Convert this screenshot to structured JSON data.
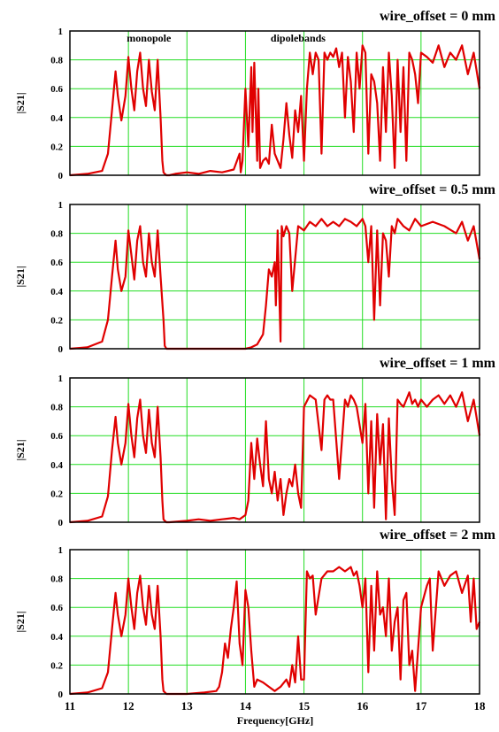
{
  "figure": {
    "xlabel": "Frequency[GHz]",
    "x_ticks": [
      "11",
      "12",
      "13",
      "14",
      "15",
      "16",
      "17",
      "18"
    ]
  },
  "chart_data": [
    {
      "type": "line",
      "title": "wire_offset = 0 mm",
      "ylabel": "|S21|",
      "xlabel": "",
      "xlim": [
        11,
        18
      ],
      "ylim": [
        0,
        1
      ],
      "x_ticks": [
        11,
        12,
        13,
        14,
        15,
        16,
        17,
        18
      ],
      "y_ticks": [
        "0",
        "0.2",
        "0.4",
        "0.6",
        "0.8",
        "1"
      ],
      "grid": true,
      "line_color": "#e00000",
      "annotations": [
        {
          "text": "monopole",
          "x": 12.35,
          "y": 0.95
        },
        {
          "text": "dipolebands",
          "x": 14.9,
          "y": 0.95
        }
      ],
      "series": [
        {
          "x": [
            11.0,
            11.3,
            11.55,
            11.65,
            11.72,
            11.78,
            11.82,
            11.88,
            11.95,
            12.0,
            12.05,
            12.1,
            12.15,
            12.2,
            12.25,
            12.3,
            12.35,
            12.4,
            12.45,
            12.5,
            12.55,
            12.58,
            12.6,
            12.62,
            12.65,
            12.7,
            12.8,
            13.0,
            13.2,
            13.4,
            13.6,
            13.8,
            13.9,
            13.92,
            13.95,
            14.0,
            14.05,
            14.1,
            14.12,
            14.15,
            14.2,
            14.22,
            14.25,
            14.3,
            14.35,
            14.4,
            14.45,
            14.5,
            14.55,
            14.6,
            14.65,
            14.7,
            14.75,
            14.8,
            14.85,
            14.9,
            14.95,
            15.0,
            15.05,
            15.1,
            15.15,
            15.2,
            15.25,
            15.3,
            15.35,
            15.4,
            15.45,
            15.5,
            15.55,
            15.6,
            15.65,
            15.7,
            15.75,
            15.8,
            15.85,
            15.9,
            15.95,
            16.0,
            16.05,
            16.1,
            16.15,
            16.2,
            16.25,
            16.3,
            16.35,
            16.4,
            16.45,
            16.5,
            16.55,
            16.6,
            16.65,
            16.7,
            16.75,
            16.8,
            16.85,
            16.9,
            16.95,
            17.0,
            17.1,
            17.2,
            17.3,
            17.4,
            17.5,
            17.6,
            17.7,
            17.8,
            17.9,
            18.0
          ],
          "y": [
            0.0,
            0.01,
            0.03,
            0.15,
            0.45,
            0.72,
            0.55,
            0.38,
            0.55,
            0.82,
            0.6,
            0.45,
            0.72,
            0.85,
            0.6,
            0.48,
            0.8,
            0.58,
            0.45,
            0.8,
            0.4,
            0.1,
            0.02,
            0.01,
            0.0,
            0.0,
            0.01,
            0.02,
            0.01,
            0.03,
            0.02,
            0.04,
            0.15,
            0.02,
            0.1,
            0.6,
            0.2,
            0.75,
            0.3,
            0.78,
            0.1,
            0.6,
            0.05,
            0.1,
            0.12,
            0.08,
            0.35,
            0.15,
            0.1,
            0.05,
            0.25,
            0.5,
            0.28,
            0.12,
            0.45,
            0.3,
            0.55,
            0.1,
            0.6,
            0.85,
            0.7,
            0.85,
            0.8,
            0.15,
            0.85,
            0.8,
            0.85,
            0.82,
            0.88,
            0.75,
            0.85,
            0.4,
            0.82,
            0.65,
            0.3,
            0.85,
            0.6,
            0.9,
            0.85,
            0.15,
            0.7,
            0.65,
            0.5,
            0.1,
            0.75,
            0.3,
            0.85,
            0.55,
            0.05,
            0.8,
            0.3,
            0.75,
            0.1,
            0.85,
            0.8,
            0.7,
            0.5,
            0.85,
            0.82,
            0.78,
            0.9,
            0.75,
            0.85,
            0.8,
            0.9,
            0.7,
            0.85,
            0.6
          ]
        }
      ]
    },
    {
      "type": "line",
      "title": "wire_offset = 0.5 mm",
      "ylabel": "|S21|",
      "xlabel": "",
      "xlim": [
        11,
        18
      ],
      "ylim": [
        0,
        1
      ],
      "x_ticks": [
        11,
        12,
        13,
        14,
        15,
        16,
        17,
        18
      ],
      "y_ticks": [
        "0",
        "0.2",
        "0.4",
        "0.6",
        "0.8",
        "1"
      ],
      "grid": true,
      "line_color": "#e00000",
      "series": [
        {
          "x": [
            11.0,
            11.3,
            11.55,
            11.65,
            11.72,
            11.78,
            11.82,
            11.88,
            11.95,
            12.0,
            12.05,
            12.1,
            12.15,
            12.2,
            12.25,
            12.3,
            12.35,
            12.4,
            12.45,
            12.5,
            12.55,
            12.6,
            12.62,
            12.65,
            12.7,
            13.0,
            13.5,
            14.0,
            14.1,
            14.2,
            14.3,
            14.35,
            14.4,
            14.45,
            14.5,
            14.52,
            14.55,
            14.6,
            14.62,
            14.65,
            14.7,
            14.75,
            14.8,
            14.9,
            15.0,
            15.1,
            15.2,
            15.3,
            15.4,
            15.5,
            15.6,
            15.7,
            15.8,
            15.9,
            16.0,
            16.05,
            16.1,
            16.15,
            16.2,
            16.25,
            16.3,
            16.35,
            16.4,
            16.45,
            16.5,
            16.55,
            16.6,
            16.7,
            16.8,
            16.9,
            17.0,
            17.2,
            17.4,
            17.6,
            17.7,
            17.8,
            17.9,
            18.0
          ],
          "y": [
            0.0,
            0.01,
            0.05,
            0.2,
            0.5,
            0.75,
            0.55,
            0.4,
            0.5,
            0.82,
            0.65,
            0.48,
            0.75,
            0.85,
            0.6,
            0.5,
            0.8,
            0.6,
            0.5,
            0.82,
            0.5,
            0.2,
            0.02,
            0.0,
            0.0,
            0.0,
            0.0,
            0.0,
            0.01,
            0.03,
            0.1,
            0.3,
            0.55,
            0.5,
            0.6,
            0.3,
            0.82,
            0.05,
            0.85,
            0.78,
            0.85,
            0.8,
            0.4,
            0.85,
            0.82,
            0.88,
            0.85,
            0.9,
            0.85,
            0.88,
            0.85,
            0.9,
            0.88,
            0.85,
            0.9,
            0.85,
            0.6,
            0.85,
            0.2,
            0.82,
            0.3,
            0.8,
            0.75,
            0.5,
            0.85,
            0.8,
            0.9,
            0.85,
            0.82,
            0.9,
            0.85,
            0.88,
            0.85,
            0.8,
            0.88,
            0.75,
            0.85,
            0.62
          ]
        }
      ]
    },
    {
      "type": "line",
      "title": "wire_offset = 1 mm",
      "ylabel": "|S21|",
      "xlabel": "",
      "xlim": [
        11,
        18
      ],
      "ylim": [
        0,
        1
      ],
      "x_ticks": [
        11,
        12,
        13,
        14,
        15,
        16,
        17,
        18
      ],
      "y_ticks": [
        "0",
        "0.2",
        "0.4",
        "0.6",
        "0.8",
        "1"
      ],
      "grid": true,
      "line_color": "#e00000",
      "series": [
        {
          "x": [
            11.0,
            11.3,
            11.55,
            11.65,
            11.72,
            11.78,
            11.82,
            11.88,
            11.95,
            12.0,
            12.05,
            12.1,
            12.15,
            12.2,
            12.25,
            12.3,
            12.35,
            12.4,
            12.45,
            12.5,
            12.55,
            12.58,
            12.6,
            12.62,
            12.65,
            12.7,
            13.0,
            13.2,
            13.4,
            13.6,
            13.8,
            13.9,
            14.0,
            14.05,
            14.1,
            14.15,
            14.2,
            14.25,
            14.3,
            14.35,
            14.4,
            14.45,
            14.5,
            14.55,
            14.6,
            14.65,
            14.7,
            14.75,
            14.8,
            14.85,
            14.9,
            14.95,
            15.0,
            15.1,
            15.2,
            15.3,
            15.35,
            15.4,
            15.45,
            15.5,
            15.6,
            15.7,
            15.75,
            15.8,
            15.85,
            15.9,
            16.0,
            16.05,
            16.1,
            16.15,
            16.2,
            16.25,
            16.3,
            16.35,
            16.4,
            16.45,
            16.5,
            16.55,
            16.6,
            16.65,
            16.7,
            16.75,
            16.8,
            16.85,
            16.9,
            16.95,
            17.0,
            17.1,
            17.2,
            17.3,
            17.4,
            17.5,
            17.6,
            17.7,
            17.8,
            17.9,
            18.0
          ],
          "y": [
            0.0,
            0.01,
            0.04,
            0.18,
            0.5,
            0.73,
            0.55,
            0.4,
            0.55,
            0.82,
            0.6,
            0.45,
            0.72,
            0.85,
            0.6,
            0.48,
            0.78,
            0.55,
            0.45,
            0.8,
            0.45,
            0.15,
            0.02,
            0.01,
            0.0,
            0.0,
            0.01,
            0.02,
            0.01,
            0.02,
            0.03,
            0.02,
            0.05,
            0.15,
            0.55,
            0.3,
            0.58,
            0.4,
            0.25,
            0.7,
            0.3,
            0.2,
            0.35,
            0.15,
            0.3,
            0.05,
            0.2,
            0.3,
            0.25,
            0.4,
            0.2,
            0.1,
            0.8,
            0.88,
            0.85,
            0.5,
            0.85,
            0.88,
            0.85,
            0.85,
            0.3,
            0.85,
            0.8,
            0.88,
            0.85,
            0.8,
            0.55,
            0.82,
            0.2,
            0.7,
            0.1,
            0.75,
            0.4,
            0.68,
            0.02,
            0.72,
            0.3,
            0.05,
            0.85,
            0.82,
            0.8,
            0.85,
            0.9,
            0.82,
            0.85,
            0.8,
            0.85,
            0.8,
            0.85,
            0.88,
            0.82,
            0.88,
            0.8,
            0.9,
            0.7,
            0.85,
            0.6
          ]
        }
      ]
    },
    {
      "type": "line",
      "title": "wire_offset = 2 mm",
      "ylabel": "|S21|",
      "xlabel": "Frequency[GHz]",
      "xlim": [
        11,
        18
      ],
      "ylim": [
        0,
        1
      ],
      "x_ticks": [
        11,
        12,
        13,
        14,
        15,
        16,
        17,
        18
      ],
      "y_ticks": [
        "0",
        "0.2",
        "0.4",
        "0.6",
        "0.8",
        "1"
      ],
      "grid": true,
      "line_color": "#e00000",
      "series": [
        {
          "x": [
            11.0,
            11.3,
            11.55,
            11.65,
            11.72,
            11.78,
            11.82,
            11.88,
            11.95,
            12.0,
            12.05,
            12.1,
            12.15,
            12.2,
            12.25,
            12.3,
            12.35,
            12.4,
            12.45,
            12.5,
            12.55,
            12.58,
            12.6,
            12.65,
            12.7,
            13.0,
            13.3,
            13.5,
            13.55,
            13.6,
            13.65,
            13.7,
            13.75,
            13.8,
            13.85,
            13.9,
            13.95,
            14.0,
            14.05,
            14.1,
            14.15,
            14.2,
            14.3,
            14.4,
            14.5,
            14.6,
            14.7,
            14.75,
            14.8,
            14.85,
            14.9,
            14.95,
            15.0,
            15.05,
            15.1,
            15.15,
            15.2,
            15.3,
            15.4,
            15.5,
            15.6,
            15.7,
            15.8,
            15.85,
            15.9,
            15.95,
            16.0,
            16.05,
            16.1,
            16.15,
            16.2,
            16.25,
            16.3,
            16.35,
            16.4,
            16.45,
            16.5,
            16.55,
            16.6,
            16.65,
            16.7,
            16.75,
            16.8,
            16.85,
            16.9,
            17.0,
            17.1,
            17.15,
            17.2,
            17.3,
            17.4,
            17.5,
            17.6,
            17.7,
            17.8,
            17.85,
            17.9,
            17.95,
            18.0
          ],
          "y": [
            0.0,
            0.01,
            0.04,
            0.15,
            0.45,
            0.7,
            0.55,
            0.4,
            0.55,
            0.8,
            0.6,
            0.45,
            0.7,
            0.82,
            0.6,
            0.48,
            0.75,
            0.55,
            0.45,
            0.75,
            0.4,
            0.1,
            0.02,
            0.0,
            0.0,
            0.0,
            0.01,
            0.02,
            0.05,
            0.15,
            0.35,
            0.25,
            0.45,
            0.6,
            0.78,
            0.35,
            0.2,
            0.72,
            0.6,
            0.3,
            0.05,
            0.1,
            0.08,
            0.05,
            0.02,
            0.05,
            0.1,
            0.05,
            0.2,
            0.08,
            0.4,
            0.1,
            0.1,
            0.85,
            0.8,
            0.82,
            0.55,
            0.8,
            0.85,
            0.85,
            0.88,
            0.85,
            0.88,
            0.82,
            0.85,
            0.75,
            0.6,
            0.8,
            0.15,
            0.75,
            0.3,
            0.85,
            0.55,
            0.6,
            0.4,
            0.8,
            0.3,
            0.5,
            0.6,
            0.1,
            0.65,
            0.7,
            0.2,
            0.3,
            0.02,
            0.6,
            0.75,
            0.8,
            0.3,
            0.85,
            0.75,
            0.82,
            0.85,
            0.7,
            0.82,
            0.5,
            0.8,
            0.45,
            0.5
          ]
        }
      ]
    }
  ]
}
